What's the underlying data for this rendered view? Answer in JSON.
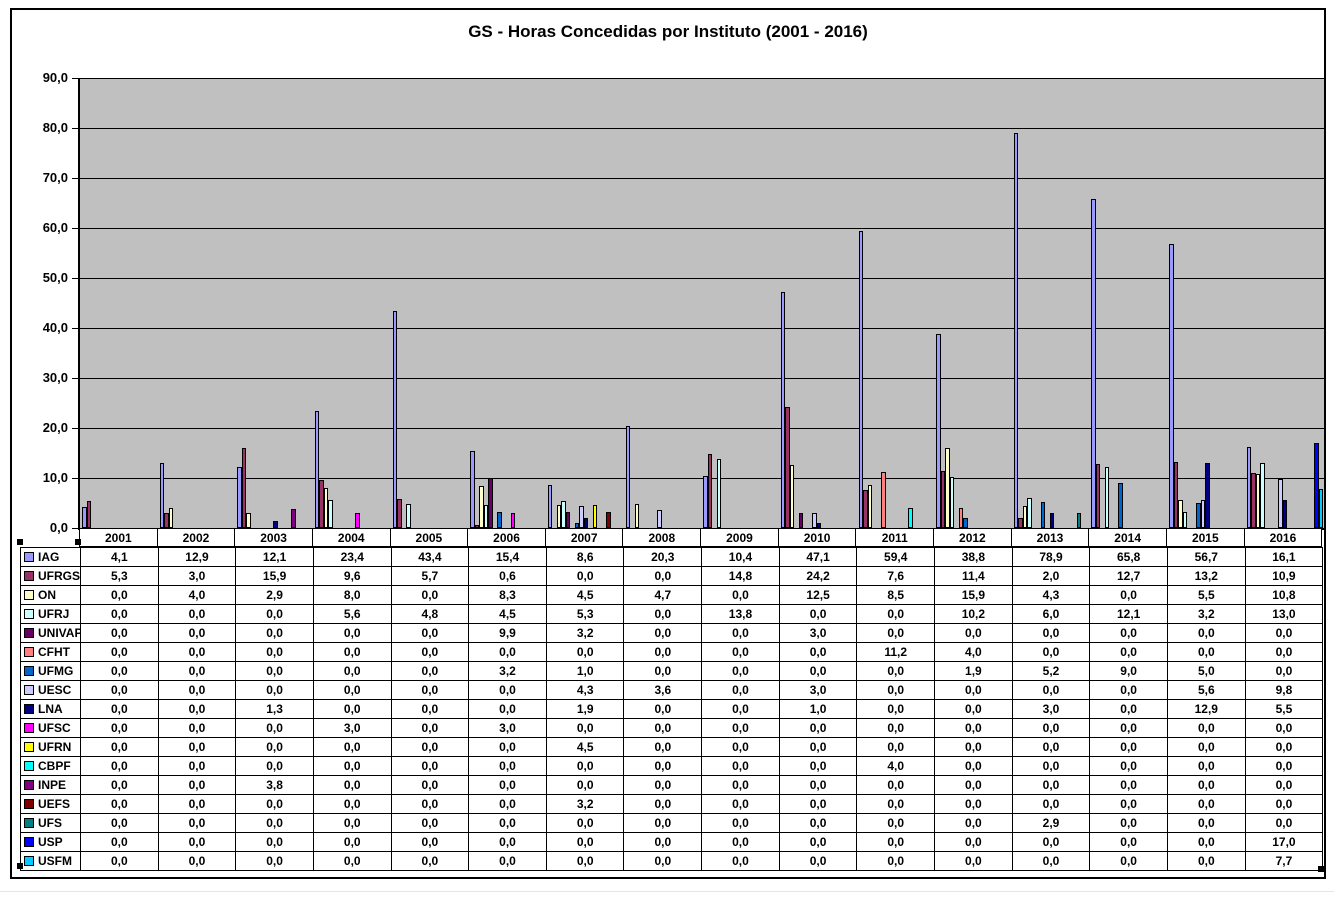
{
  "chart_data": {
    "type": "bar",
    "title": "GS - Horas Concedidas por Instituto (2001 - 2016)",
    "categories": [
      "2001",
      "2002",
      "2003",
      "2004",
      "2005",
      "2006",
      "2007",
      "2008",
      "2009",
      "2010",
      "2011",
      "2012",
      "2013",
      "2014",
      "2015",
      "2016"
    ],
    "ylabel": "",
    "xlabel": "",
    "ylim": [
      0,
      90
    ],
    "ytick_step": 10,
    "decimal_separator": ",",
    "grid": true,
    "plot_background": "#C0C0C0",
    "legend_position": "data-table-left-keys",
    "series": [
      {
        "name": "IAG",
        "color": "#9999FF",
        "values": [
          4.1,
          12.9,
          12.1,
          23.4,
          43.4,
          15.4,
          8.6,
          20.3,
          10.4,
          47.1,
          59.4,
          38.8,
          78.9,
          65.8,
          56.7,
          16.1
        ]
      },
      {
        "name": "UFRGS",
        "color": "#993366",
        "values": [
          5.3,
          3.0,
          15.9,
          9.6,
          5.7,
          0.6,
          0.0,
          0.0,
          14.8,
          24.2,
          7.6,
          11.4,
          2.0,
          12.7,
          13.2,
          10.9
        ]
      },
      {
        "name": "ON",
        "color": "#FFFFCC",
        "values": [
          0.0,
          4.0,
          2.9,
          8.0,
          0.0,
          8.3,
          4.5,
          4.7,
          0.0,
          12.5,
          8.5,
          15.9,
          4.3,
          0.0,
          5.5,
          10.8
        ]
      },
      {
        "name": "UFRJ",
        "color": "#CCFFFF",
        "values": [
          0.0,
          0.0,
          0.0,
          5.6,
          4.8,
          4.5,
          5.3,
          0.0,
          13.8,
          0.0,
          0.0,
          10.2,
          6.0,
          12.1,
          3.2,
          13.0
        ]
      },
      {
        "name": "UNIVAP",
        "color": "#660066",
        "values": [
          0.0,
          0.0,
          0.0,
          0.0,
          0.0,
          9.9,
          3.2,
          0.0,
          0.0,
          3.0,
          0.0,
          0.0,
          0.0,
          0.0,
          0.0,
          0.0
        ]
      },
      {
        "name": "CFHT",
        "color": "#FF8080",
        "values": [
          0.0,
          0.0,
          0.0,
          0.0,
          0.0,
          0.0,
          0.0,
          0.0,
          0.0,
          0.0,
          11.2,
          4.0,
          0.0,
          0.0,
          0.0,
          0.0
        ]
      },
      {
        "name": "UFMG",
        "color": "#0066CC",
        "values": [
          0.0,
          0.0,
          0.0,
          0.0,
          0.0,
          3.2,
          1.0,
          0.0,
          0.0,
          0.0,
          0.0,
          1.9,
          5.2,
          9.0,
          5.0,
          0.0
        ]
      },
      {
        "name": "UESC",
        "color": "#CCCCFF",
        "values": [
          0.0,
          0.0,
          0.0,
          0.0,
          0.0,
          0.0,
          4.3,
          3.6,
          0.0,
          3.0,
          0.0,
          0.0,
          0.0,
          0.0,
          5.6,
          9.8
        ]
      },
      {
        "name": "LNA",
        "color": "#000080",
        "values": [
          0.0,
          0.0,
          1.3,
          0.0,
          0.0,
          0.0,
          1.9,
          0.0,
          0.0,
          1.0,
          0.0,
          0.0,
          3.0,
          0.0,
          12.9,
          5.5
        ]
      },
      {
        "name": "UFSC",
        "color": "#FF00FF",
        "values": [
          0.0,
          0.0,
          0.0,
          3.0,
          0.0,
          3.0,
          0.0,
          0.0,
          0.0,
          0.0,
          0.0,
          0.0,
          0.0,
          0.0,
          0.0,
          0.0
        ]
      },
      {
        "name": "UFRN",
        "color": "#FFFF00",
        "values": [
          0.0,
          0.0,
          0.0,
          0.0,
          0.0,
          0.0,
          4.5,
          0.0,
          0.0,
          0.0,
          0.0,
          0.0,
          0.0,
          0.0,
          0.0,
          0.0
        ]
      },
      {
        "name": "CBPF",
        "color": "#00FFFF",
        "values": [
          0.0,
          0.0,
          0.0,
          0.0,
          0.0,
          0.0,
          0.0,
          0.0,
          0.0,
          0.0,
          4.0,
          0.0,
          0.0,
          0.0,
          0.0,
          0.0
        ]
      },
      {
        "name": "INPE",
        "color": "#800080",
        "values": [
          0.0,
          0.0,
          3.8,
          0.0,
          0.0,
          0.0,
          0.0,
          0.0,
          0.0,
          0.0,
          0.0,
          0.0,
          0.0,
          0.0,
          0.0,
          0.0
        ]
      },
      {
        "name": "UEFS",
        "color": "#800000",
        "values": [
          0.0,
          0.0,
          0.0,
          0.0,
          0.0,
          0.0,
          3.2,
          0.0,
          0.0,
          0.0,
          0.0,
          0.0,
          0.0,
          0.0,
          0.0,
          0.0
        ]
      },
      {
        "name": "UFS",
        "color": "#008080",
        "values": [
          0.0,
          0.0,
          0.0,
          0.0,
          0.0,
          0.0,
          0.0,
          0.0,
          0.0,
          0.0,
          0.0,
          0.0,
          2.9,
          0.0,
          0.0,
          0.0
        ]
      },
      {
        "name": "USP",
        "color": "#0000FF",
        "values": [
          0.0,
          0.0,
          0.0,
          0.0,
          0.0,
          0.0,
          0.0,
          0.0,
          0.0,
          0.0,
          0.0,
          0.0,
          0.0,
          0.0,
          0.0,
          17.0
        ]
      },
      {
        "name": "USFM",
        "color": "#00CCFF",
        "values": [
          0.0,
          0.0,
          0.0,
          0.0,
          0.0,
          0.0,
          0.0,
          0.0,
          0.0,
          0.0,
          0.0,
          0.0,
          0.0,
          0.0,
          0.0,
          7.7
        ]
      }
    ]
  }
}
